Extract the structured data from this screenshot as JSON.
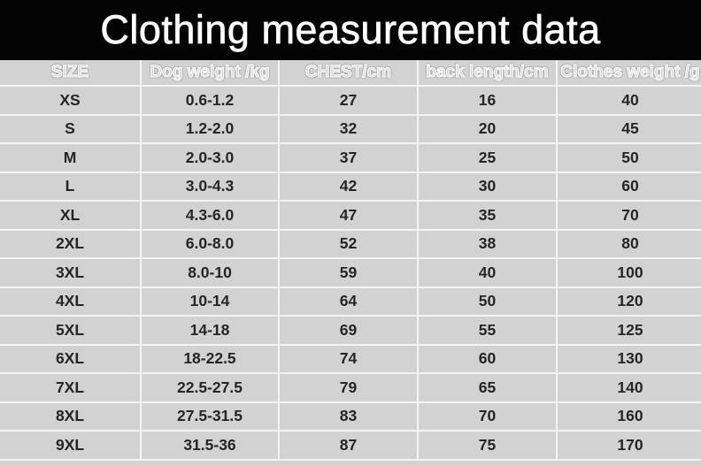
{
  "title": "Clothing measurement data",
  "chart_data": {
    "type": "table",
    "title": "Clothing measurement data",
    "columns": [
      "SIZE",
      "Dog weight /kg",
      "CHEST/cm",
      "back length/cm",
      "Clothes weight /g"
    ],
    "rows": [
      [
        "XS",
        "0.6-1.2",
        "27",
        "16",
        "40"
      ],
      [
        "S",
        "1.2-2.0",
        "32",
        "20",
        "45"
      ],
      [
        "M",
        "2.0-3.0",
        "37",
        "25",
        "50"
      ],
      [
        "L",
        "3.0-4.3",
        "42",
        "30",
        "60"
      ],
      [
        "XL",
        "4.3-6.0",
        "47",
        "35",
        "70"
      ],
      [
        "2XL",
        "6.0-8.0",
        "52",
        "38",
        "80"
      ],
      [
        "3XL",
        "8.0-10",
        "59",
        "40",
        "100"
      ],
      [
        "4XL",
        "10-14",
        "64",
        "50",
        "120"
      ],
      [
        "5XL",
        "14-18",
        "69",
        "55",
        "125"
      ],
      [
        "6XL",
        "18-22.5",
        "74",
        "60",
        "130"
      ],
      [
        "7XL",
        "22.5-27.5",
        "79",
        "65",
        "140"
      ],
      [
        "8XL",
        "27.5-31.5",
        "83",
        "70",
        "160"
      ],
      [
        "9XL",
        "31.5-36",
        "87",
        "75",
        "170"
      ]
    ]
  },
  "colors": {
    "banner_bg": "#040404",
    "title_text": "#ffffff",
    "cell_bg": "#d2d2d2",
    "gridline": "#f4f4f4",
    "data_text": "#252525",
    "header_text_fill": "#d2d2d2",
    "header_text_outline": "#fbfbfb"
  }
}
